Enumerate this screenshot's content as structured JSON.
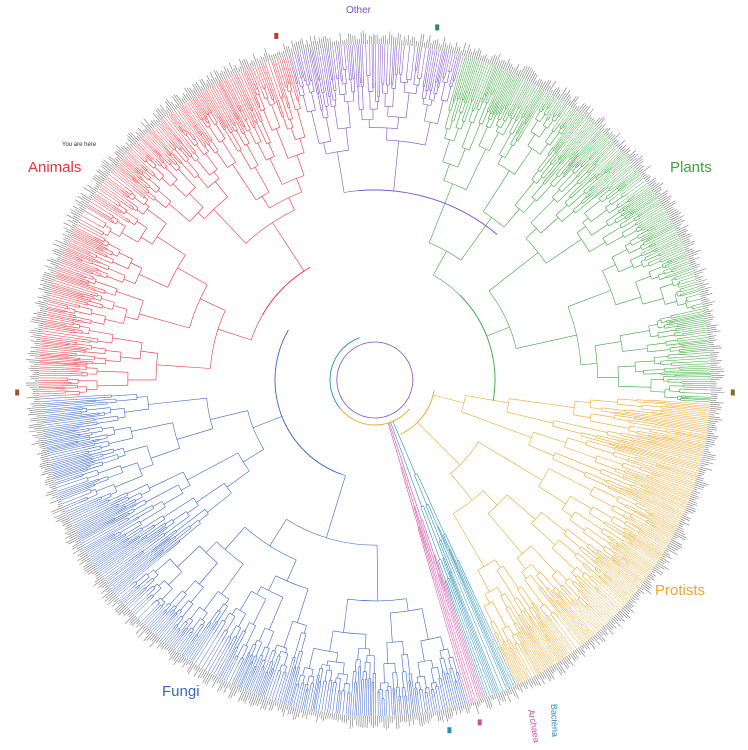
{
  "diagram": {
    "marker_note": "You are here",
    "clades": [
      {
        "key": "animals",
        "label": "Animals",
        "color": "#e8323f"
      },
      {
        "key": "other",
        "label": "Other",
        "color": "#7a4fc4"
      },
      {
        "key": "plants",
        "label": "Plants",
        "color": "#3aa63c"
      },
      {
        "key": "protists",
        "label": "Protists",
        "color": "#eaa82a"
      },
      {
        "key": "bacteria",
        "label": "Bacteria",
        "color": "#2b8fb8"
      },
      {
        "key": "archaea",
        "label": "Archaea",
        "color": "#d24aa6"
      },
      {
        "key": "fungi",
        "label": "Fungi",
        "color": "#3a66c6"
      }
    ]
  }
}
